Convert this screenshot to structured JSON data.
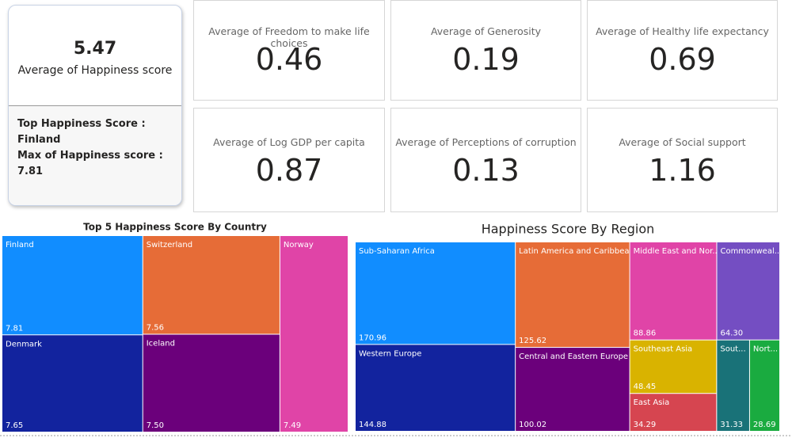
{
  "kpi": {
    "value": 5.47,
    "label": "Average of Happiness score",
    "line1": "Top Happiness Score : Finland",
    "line2": "Max of Happiness score : 7.81"
  },
  "cards": [
    {
      "label": "Average of Freedom to make life choices",
      "value": 0.46
    },
    {
      "label": "Average of Generosity",
      "value": 0.19
    },
    {
      "label": "Average of Healthy life expectancy",
      "value": 0.69
    },
    {
      "label": "Average of Log GDP per capita",
      "value": 0.87
    },
    {
      "label": "Average of Perceptions of corruption",
      "value": 0.13
    },
    {
      "label": "Average of Social support",
      "value": 1.16
    }
  ],
  "chart_data": [
    {
      "type": "treemap",
      "title": "Top 5 Happiness Score By Country",
      "categories": [
        "Finland",
        "Denmark",
        "Switzerland",
        "Iceland",
        "Norway"
      ],
      "values": [
        7.81,
        7.65,
        7.56,
        7.5,
        7.49
      ],
      "value_labels": [
        "7.81",
        "7.65",
        "7.56",
        "7.50",
        "7.49"
      ],
      "colors": [
        "#118dff",
        "#12239e",
        "#e66c37",
        "#6b007b",
        "#e044a7"
      ]
    },
    {
      "type": "treemap",
      "title": "Happiness Score By Region",
      "categories": [
        "Sub-Saharan Africa",
        "Western Europe",
        "Latin America and Caribbean",
        "Central and Eastern Europe",
        "Middle East and Nor...",
        "Commonweal...",
        "Southeast Asia",
        "East Asia",
        "Sout...",
        "Nort..."
      ],
      "values": [
        170.96,
        144.88,
        125.62,
        100.02,
        88.86,
        64.3,
        48.45,
        34.29,
        31.33,
        28.69
      ],
      "value_labels": [
        "170.96",
        "144.88",
        "125.62",
        "100.02",
        "88.86",
        "64.30",
        "48.45",
        "34.29",
        "31.33",
        "28.69"
      ],
      "colors": [
        "#118dff",
        "#12239e",
        "#e66c37",
        "#6b007b",
        "#e044a7",
        "#744ec2",
        "#d9b300",
        "#d64550",
        "#197278",
        "#1aab40"
      ]
    }
  ]
}
